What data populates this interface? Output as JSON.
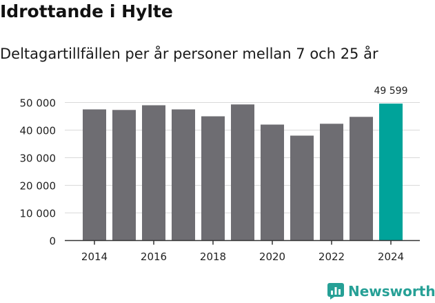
{
  "chart_data": {
    "type": "bar",
    "title": "Idrottande i Hylte",
    "subtitle": "Deltagartillfällen per år personer mellan 7 och 25 år",
    "categories": [
      2014,
      2015,
      2016,
      2017,
      2018,
      2019,
      2020,
      2021,
      2022,
      2023,
      2024
    ],
    "values": [
      47500,
      47300,
      49000,
      47500,
      45000,
      49300,
      42000,
      38000,
      42300,
      44800,
      49599
    ],
    "highlight_index": 10,
    "highlight_label": "49 599",
    "xlabel": "",
    "ylabel": "",
    "ylim": [
      0,
      50000
    ],
    "yticks": [
      0,
      10000,
      20000,
      30000,
      40000,
      50000
    ],
    "ytick_labels": [
      "0",
      "10 000",
      "20 000",
      "30 000",
      "40 000",
      "50 000"
    ],
    "xtick_labels": [
      "2014",
      "2016",
      "2018",
      "2020",
      "2022",
      "2024"
    ],
    "grid": true,
    "colors": {
      "bar": "#6e6d72",
      "highlight": "#00a39a",
      "grid": "#d9d9d9",
      "axis": "#333333"
    }
  },
  "branding": {
    "name": "Newsworthy",
    "icon": "bar-chart-logo-icon",
    "color": "#26a096"
  }
}
